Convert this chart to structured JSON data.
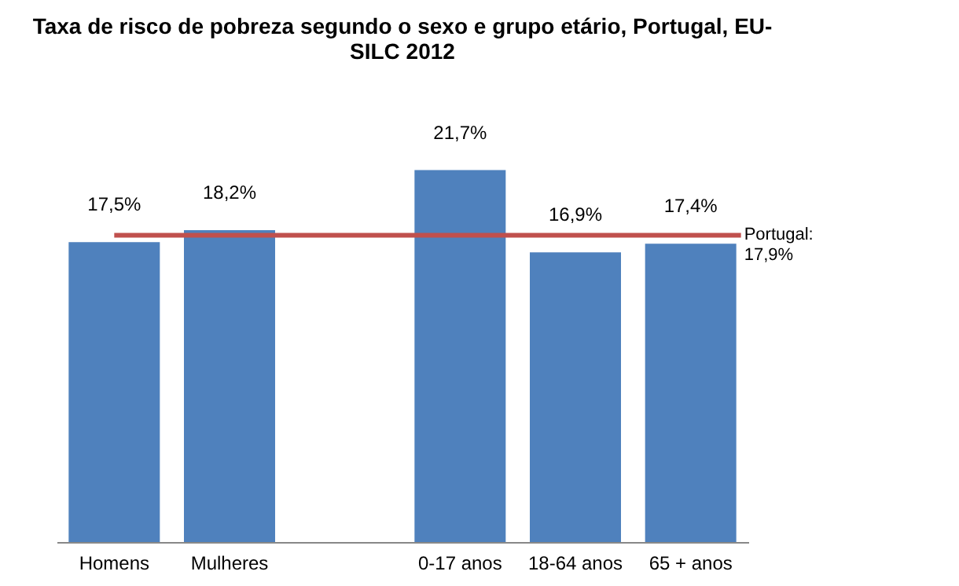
{
  "chart_data": {
    "type": "bar",
    "title": "Taxa de risco de pobreza segundo o sexo e grupo etário, Portugal, EU-SILC 2012",
    "categories": [
      "Homens",
      "Mulheres",
      null,
      "0-17 anos",
      "18-64 anos",
      "65 + anos"
    ],
    "values": [
      17.5,
      18.2,
      null,
      21.7,
      16.9,
      17.4
    ],
    "value_labels": [
      "17,5%",
      "18,2%",
      null,
      "21,7%",
      "16,9%",
      "17,4%"
    ],
    "color": "#4f81bd",
    "ref_lines": [
      {
        "axis": "y",
        "value": 17.9,
        "label": "Portugal:\n17,9%",
        "color": "#c0504d"
      }
    ],
    "grid": false
  }
}
